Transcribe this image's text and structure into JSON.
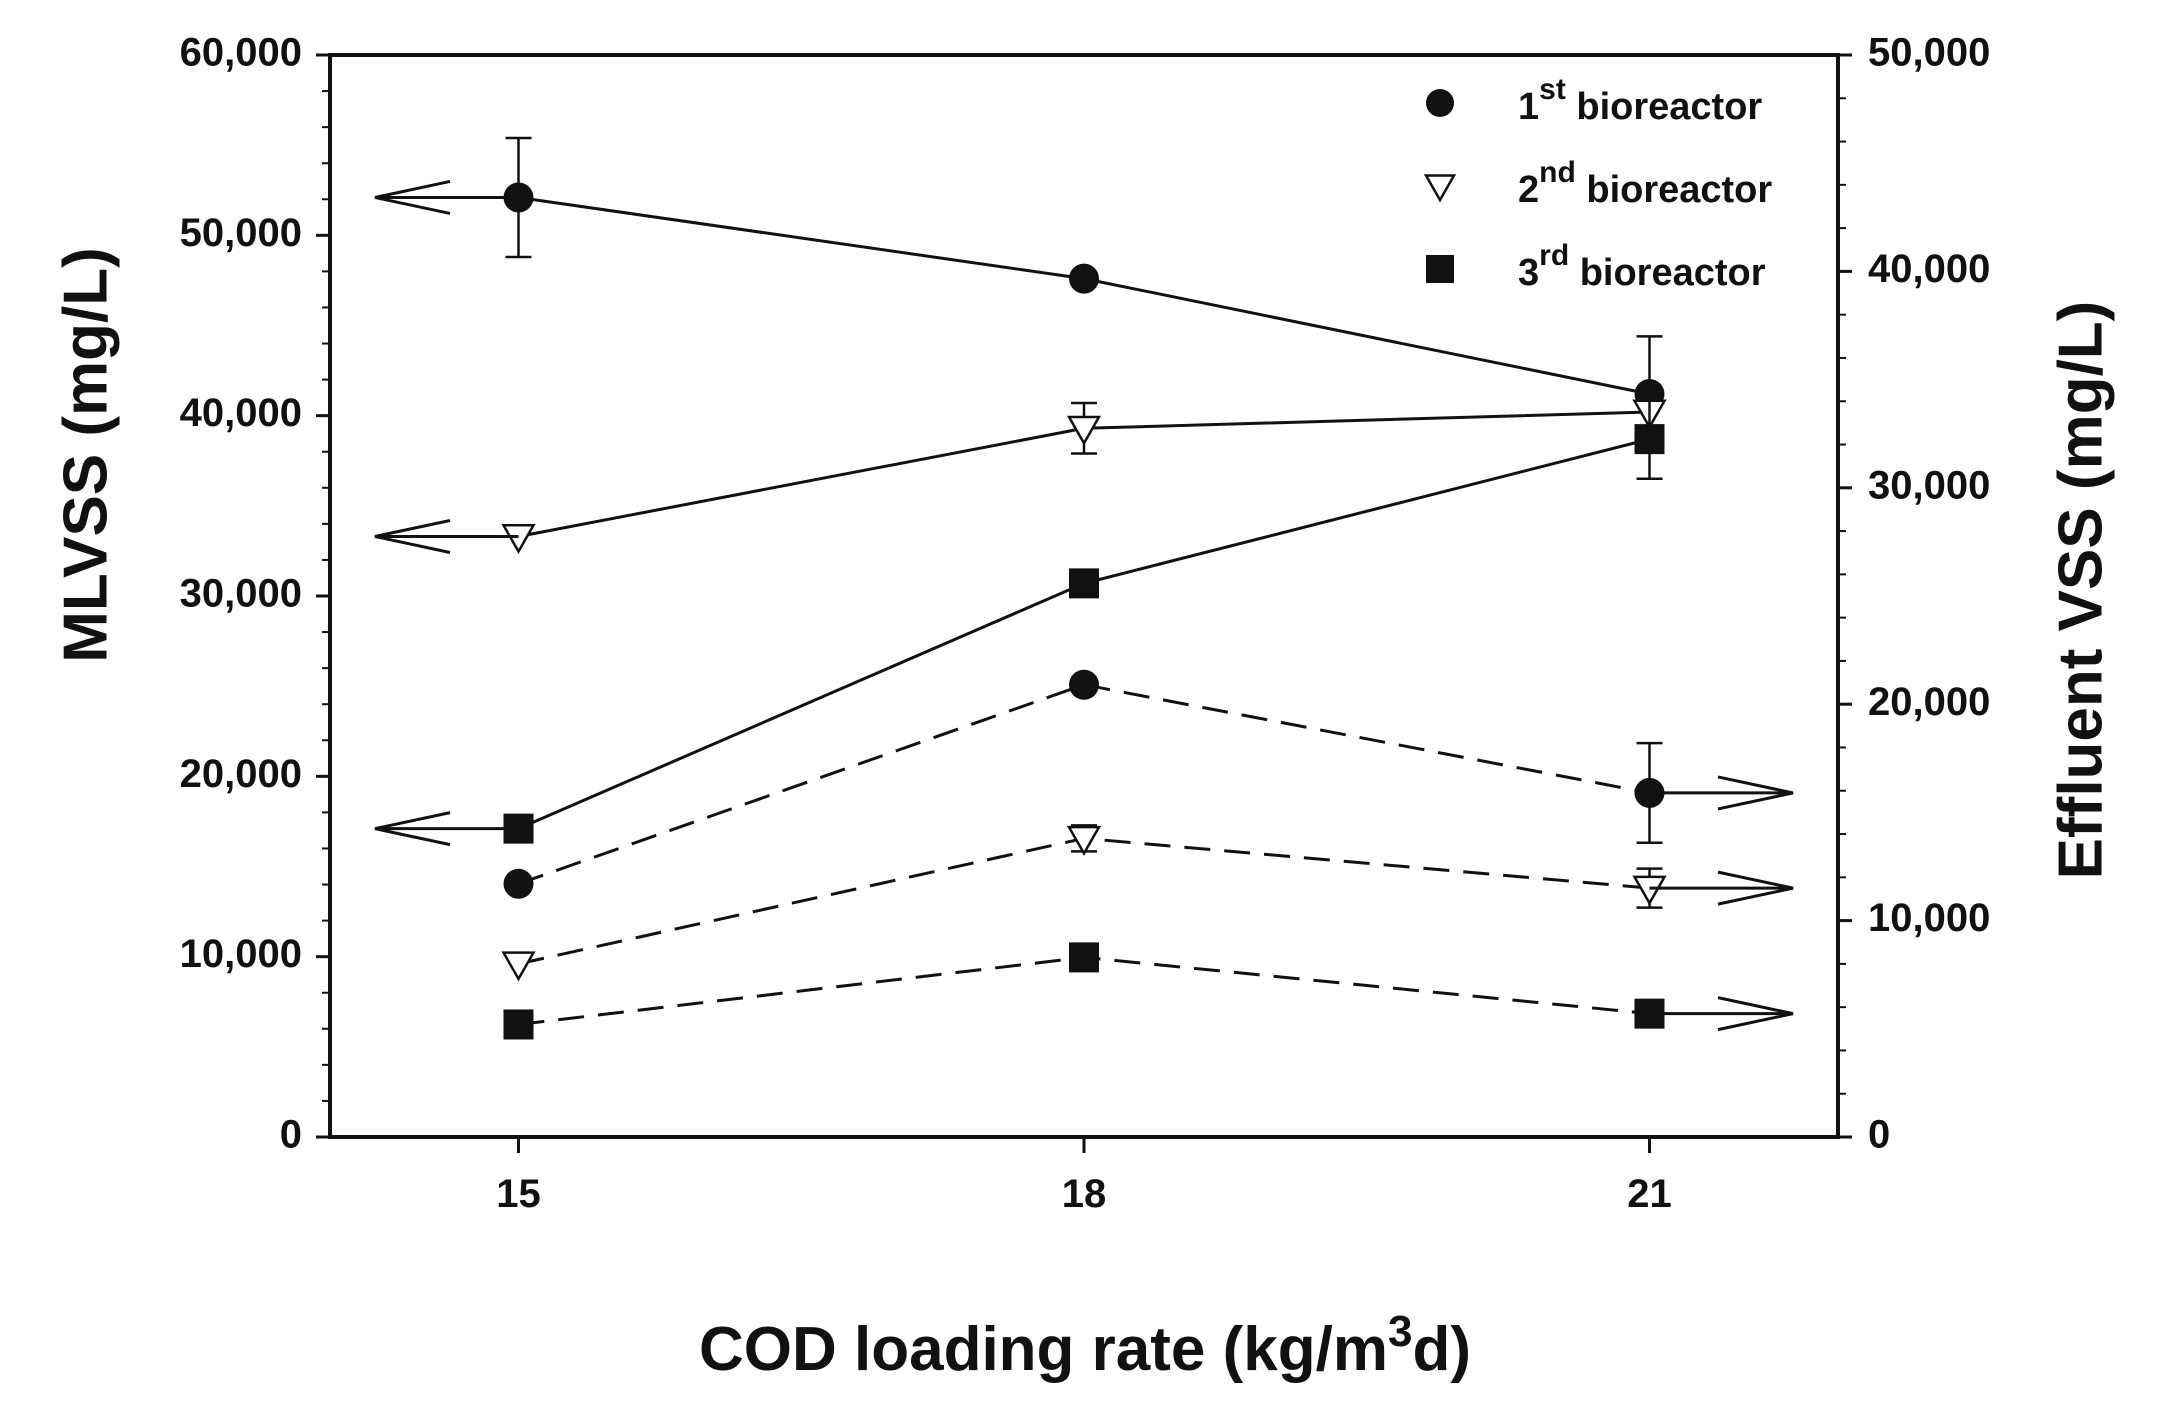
{
  "chart_data": {
    "type": "line",
    "x": [
      15,
      18,
      21
    ],
    "xlabel_main": "COD loading rate (kg/m",
    "xlabel_sup": "3",
    "xlabel_tail": "d)",
    "ylabel_left": "MLVSS (mg/L)",
    "ylabel_right": "Effluent VSS (mg/L)",
    "xlim": [
      14,
      22
    ],
    "ylim_left": [
      0,
      60000
    ],
    "ylim_right": [
      0,
      50000
    ],
    "x_ticks": [
      "15",
      "18",
      "21"
    ],
    "left_ticks": [
      {
        "v": 0,
        "label": "0"
      },
      {
        "v": 10000,
        "label": "10,000"
      },
      {
        "v": 20000,
        "label": "20,000"
      },
      {
        "v": 30000,
        "label": "30,000"
      },
      {
        "v": 40000,
        "label": "40,000"
      },
      {
        "v": 50000,
        "label": "50,000"
      },
      {
        "v": 60000,
        "label": "60,000"
      }
    ],
    "right_ticks": [
      {
        "v": 0,
        "label": "0"
      },
      {
        "v": 10000,
        "label": "10,000"
      },
      {
        "v": 20000,
        "label": "20,000"
      },
      {
        "v": 30000,
        "label": "30,000"
      },
      {
        "v": 40000,
        "label": "40,000"
      },
      {
        "v": 50000,
        "label": "50,000"
      }
    ],
    "legend": [
      {
        "pre": "1",
        "sup": "st",
        "post": " bioreactor",
        "marker": "circle"
      },
      {
        "pre": "2",
        "sup": "nd",
        "post": " bioreactor",
        "marker": "triangle"
      },
      {
        "pre": "3",
        "sup": "rd",
        "post": " bioreactor",
        "marker": "square"
      }
    ],
    "series": [
      {
        "name": "1st bioreactor MLVSS",
        "axis": "left",
        "dash": "solid",
        "marker": "circle",
        "values": [
          52100,
          47600,
          41200
        ],
        "errors": [
          3300,
          0,
          3200
        ]
      },
      {
        "name": "2nd bioreactor MLVSS",
        "axis": "left",
        "dash": "solid",
        "marker": "triangle",
        "values": [
          33300,
          39300,
          40200
        ],
        "errors": [
          0,
          1400,
          0
        ]
      },
      {
        "name": "3rd bioreactor MLVSS",
        "axis": "left",
        "dash": "solid",
        "marker": "square",
        "values": [
          17100,
          30700,
          38700
        ],
        "errors": [
          0,
          0,
          2200
        ]
      },
      {
        "name": "1st bioreactor effluent VSS",
        "axis": "right",
        "dash": "dashed",
        "marker": "circle",
        "values": [
          11700,
          20900,
          15900
        ],
        "errors": [
          0,
          0,
          2300
        ]
      },
      {
        "name": "2nd bioreactor effluent VSS",
        "axis": "right",
        "dash": "dashed",
        "marker": "triangle",
        "values": [
          8000,
          13800,
          11500
        ],
        "errors": [
          0,
          600,
          900
        ]
      },
      {
        "name": "3rd bioreactor effluent VSS",
        "axis": "right",
        "dash": "dashed",
        "marker": "square",
        "values": [
          5200,
          8300,
          5700
        ],
        "errors": [
          0,
          0,
          0
        ]
      }
    ],
    "axis_arrows": [
      {
        "series": 0,
        "from_index": 0,
        "direction": "left"
      },
      {
        "series": 1,
        "from_index": 0,
        "direction": "left"
      },
      {
        "series": 2,
        "from_index": 0,
        "direction": "left"
      },
      {
        "series": 3,
        "from_index": 2,
        "direction": "right"
      },
      {
        "series": 4,
        "from_index": 2,
        "direction": "right"
      },
      {
        "series": 5,
        "from_index": 2,
        "direction": "right"
      }
    ]
  }
}
